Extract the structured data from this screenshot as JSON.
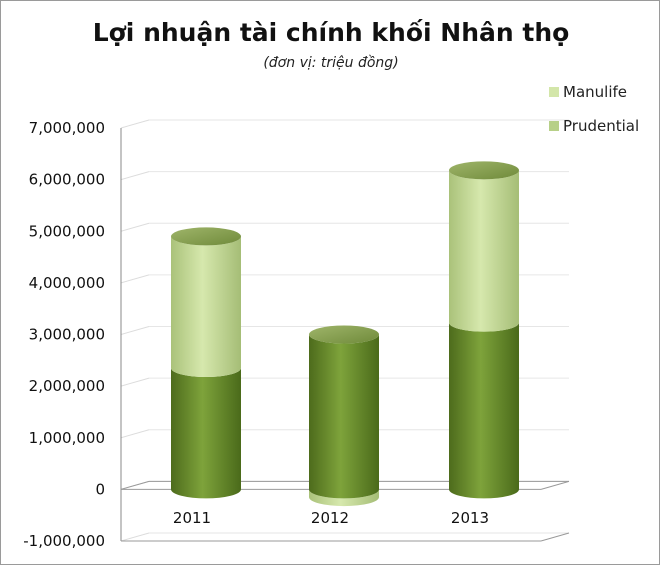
{
  "chart_data": {
    "type": "bar",
    "title": "Lợi nhuận tài chính khối Nhân thọ",
    "subtitle": "(đơn vị: triệu đồng)",
    "categories": [
      "2011",
      "2012",
      "2013"
    ],
    "ylim": [
      -1000000,
      7000000
    ],
    "yticks": [
      "-1,000,000",
      "0",
      "1,000,000",
      "2,000,000",
      "3,000,000",
      "4,000,000",
      "5,000,000",
      "6,000,000",
      "7,000,000"
    ],
    "series": [
      {
        "name": "Prudential",
        "values": [
          2350000,
          3000000,
          3230000
        ],
        "color": "#6b8e2f"
      },
      {
        "name": "Manulife",
        "values": [
          2550000,
          -150000,
          2950000
        ],
        "color": "#c9df9c"
      }
    ],
    "legend_position": "top-right",
    "grid": true,
    "style": "3d-cylinder-stacked"
  }
}
